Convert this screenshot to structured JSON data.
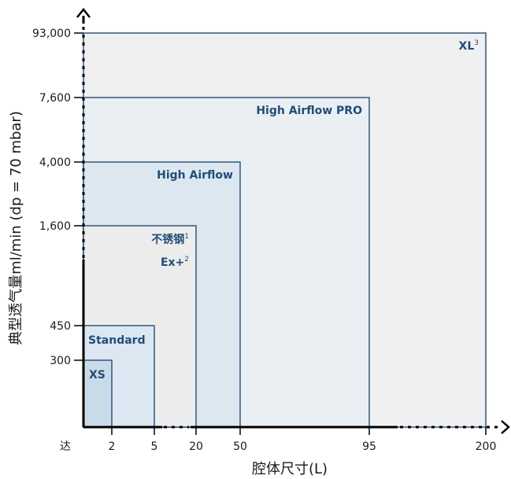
{
  "chart_data": {
    "type": "nested-region",
    "xlabel": "腔体尺寸(L)",
    "ylabel": "典型透气量ml/min (dp = 70 mbar)",
    "x_ticks": [
      "2",
      "5",
      "20",
      "50",
      "95",
      "200"
    ],
    "x_origin_label": "达",
    "y_ticks": [
      "300",
      "450",
      "1,600",
      "4,000",
      "7,600",
      "93,000"
    ],
    "series": [
      {
        "name": "XL",
        "sup": "3",
        "x": "200",
        "y": "93,000",
        "fill": "#f0f0f0"
      },
      {
        "name": "High Airflow PRO",
        "sup": "",
        "x": "95",
        "y": "7,600",
        "fill": "#eaeff4"
      },
      {
        "name": "High Airflow",
        "sup": "",
        "x": "50",
        "y": "4,000",
        "fill": "#dde7f0"
      },
      {
        "name": "不锈钢",
        "sup": "1",
        "x": "20",
        "y": "1,600",
        "fill": "#ececec"
      },
      {
        "name": "Ex+",
        "sup": "2",
        "x": "20",
        "y": "1,600",
        "fill": ""
      },
      {
        "name": "Standard",
        "sup": "",
        "x": "5",
        "y": "450",
        "fill": "#dce7f1"
      },
      {
        "name": "XS",
        "sup": "",
        "x": "2",
        "y": "300",
        "fill": "#c9dbe8"
      }
    ],
    "colors": {
      "border": "#1f4e79",
      "label": "#1f4e79",
      "axis": "#000000"
    }
  }
}
